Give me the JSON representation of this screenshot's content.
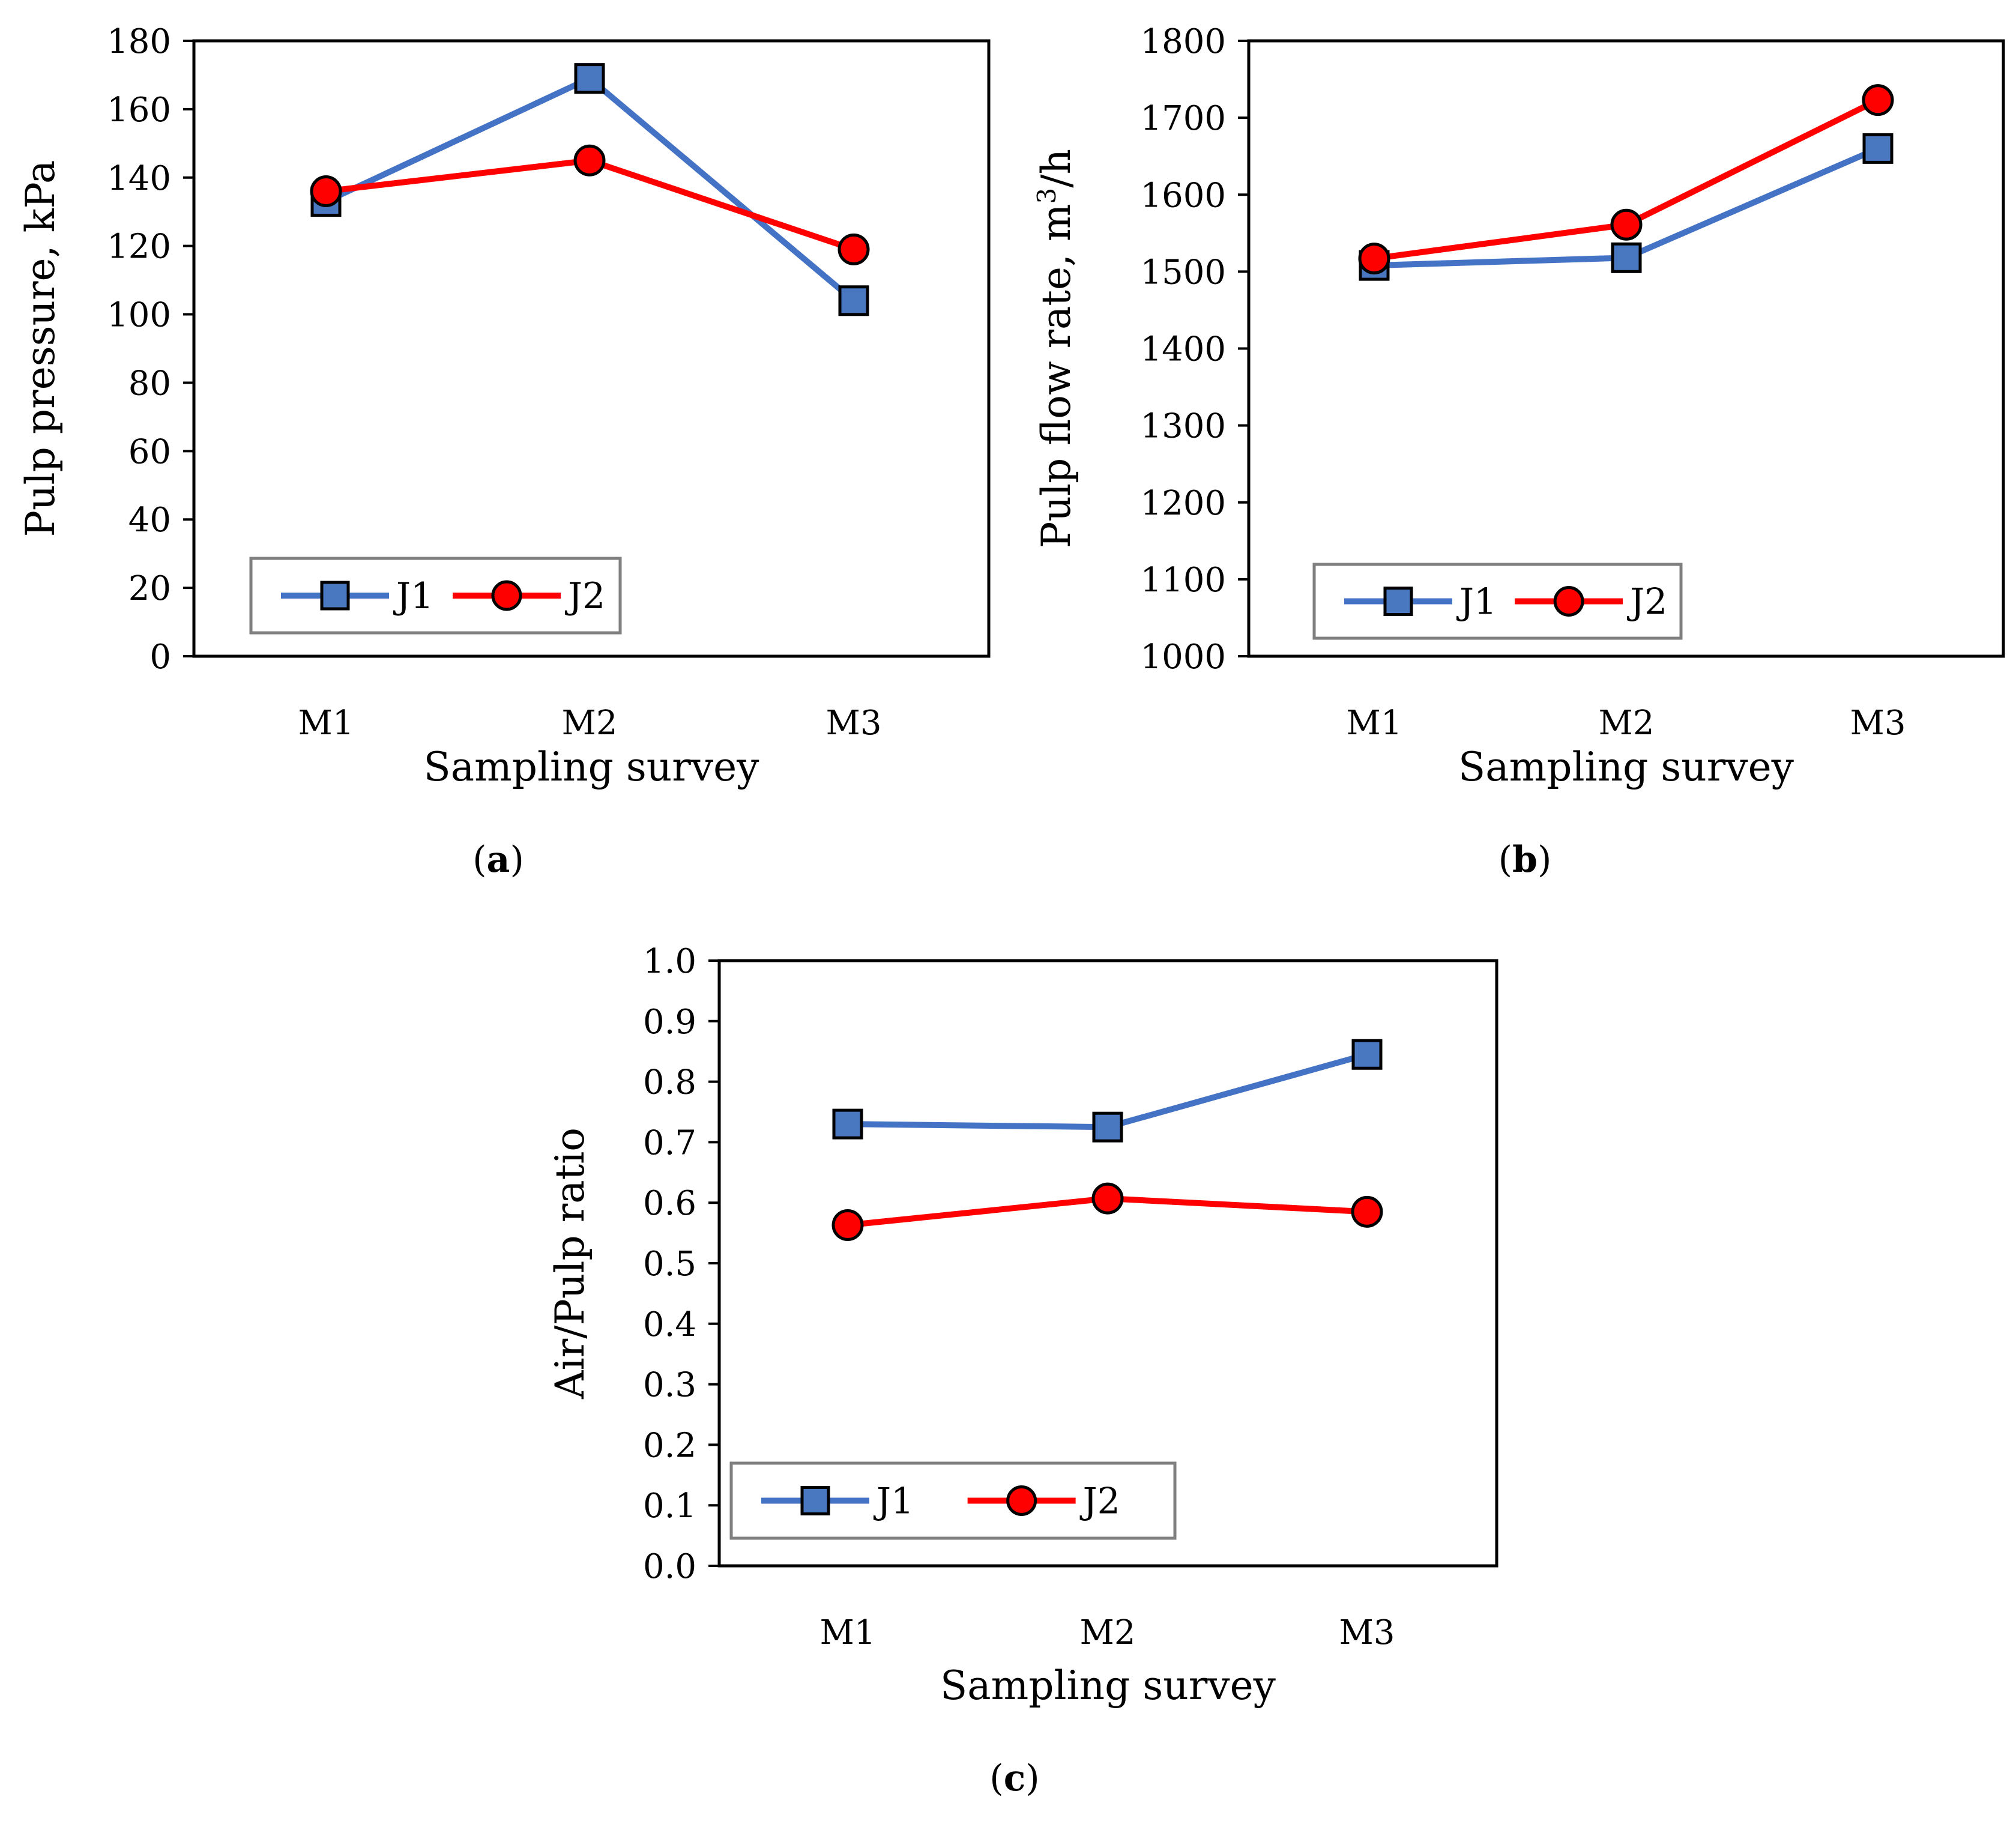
{
  "colors": {
    "J1": "#4472c4",
    "J1_marker": "#4a78c0",
    "J2": "#ff0000",
    "frame": "#000000",
    "legend_border": "#7f7f7f"
  },
  "chart_data": [
    {
      "type": "line",
      "panel_label": "a",
      "categories": [
        "M1",
        "M2",
        "M3"
      ],
      "series": [
        {
          "name": "J1",
          "marker": "square",
          "values": [
            133,
            169,
            104
          ]
        },
        {
          "name": "J2",
          "marker": "circle",
          "values": [
            136,
            145,
            119
          ]
        }
      ],
      "xlabel": "Sampling survey",
      "ylabel": "Pulp pressure, kPa",
      "ylabel_parts": [
        "Pulp pressure, kPa"
      ],
      "ylim": [
        0,
        180
      ],
      "yticks": [
        "0",
        "20",
        "40",
        "60",
        "80",
        "100",
        "120",
        "140",
        "160",
        "180"
      ],
      "legend": [
        "J1",
        "J2"
      ],
      "legend_position": "bottom-left"
    },
    {
      "type": "line",
      "panel_label": "b",
      "categories": [
        "M1",
        "M2",
        "M3"
      ],
      "series": [
        {
          "name": "J1",
          "marker": "square",
          "values": [
            1508,
            1518,
            1660
          ]
        },
        {
          "name": "J2",
          "marker": "circle",
          "values": [
            1517,
            1561,
            1723
          ]
        }
      ],
      "xlabel": "Sampling survey",
      "ylabel": "Pulp flow rate, m3/h",
      "ylabel_parts": [
        "Pulp flow rate, m",
        "3",
        "/h"
      ],
      "ylim": [
        1000,
        1800
      ],
      "yticks": [
        "1000",
        "1100",
        "1200",
        "1300",
        "1400",
        "1500",
        "1600",
        "1700",
        "1800"
      ],
      "legend": [
        "J1",
        "J2"
      ],
      "legend_position": "bottom-left"
    },
    {
      "type": "line",
      "panel_label": "c",
      "categories": [
        "M1",
        "M2",
        "M3"
      ],
      "series": [
        {
          "name": "J1",
          "marker": "square",
          "values": [
            0.73,
            0.725,
            0.845
          ]
        },
        {
          "name": "J2",
          "marker": "circle",
          "values": [
            0.563,
            0.607,
            0.585
          ]
        }
      ],
      "xlabel": "Sampling survey",
      "ylabel": "Air/Pulp ratio",
      "ylabel_parts": [
        "Air/Pulp ratio"
      ],
      "ylim": [
        0,
        1
      ],
      "yticks": [
        "0.0",
        "0.1",
        "0.2",
        "0.3",
        "0.4",
        "0.5",
        "0.6",
        "0.7",
        "0.8",
        "0.9",
        "1.0"
      ],
      "legend": [
        "J1",
        "J2"
      ],
      "legend_position": "bottom-left"
    }
  ]
}
